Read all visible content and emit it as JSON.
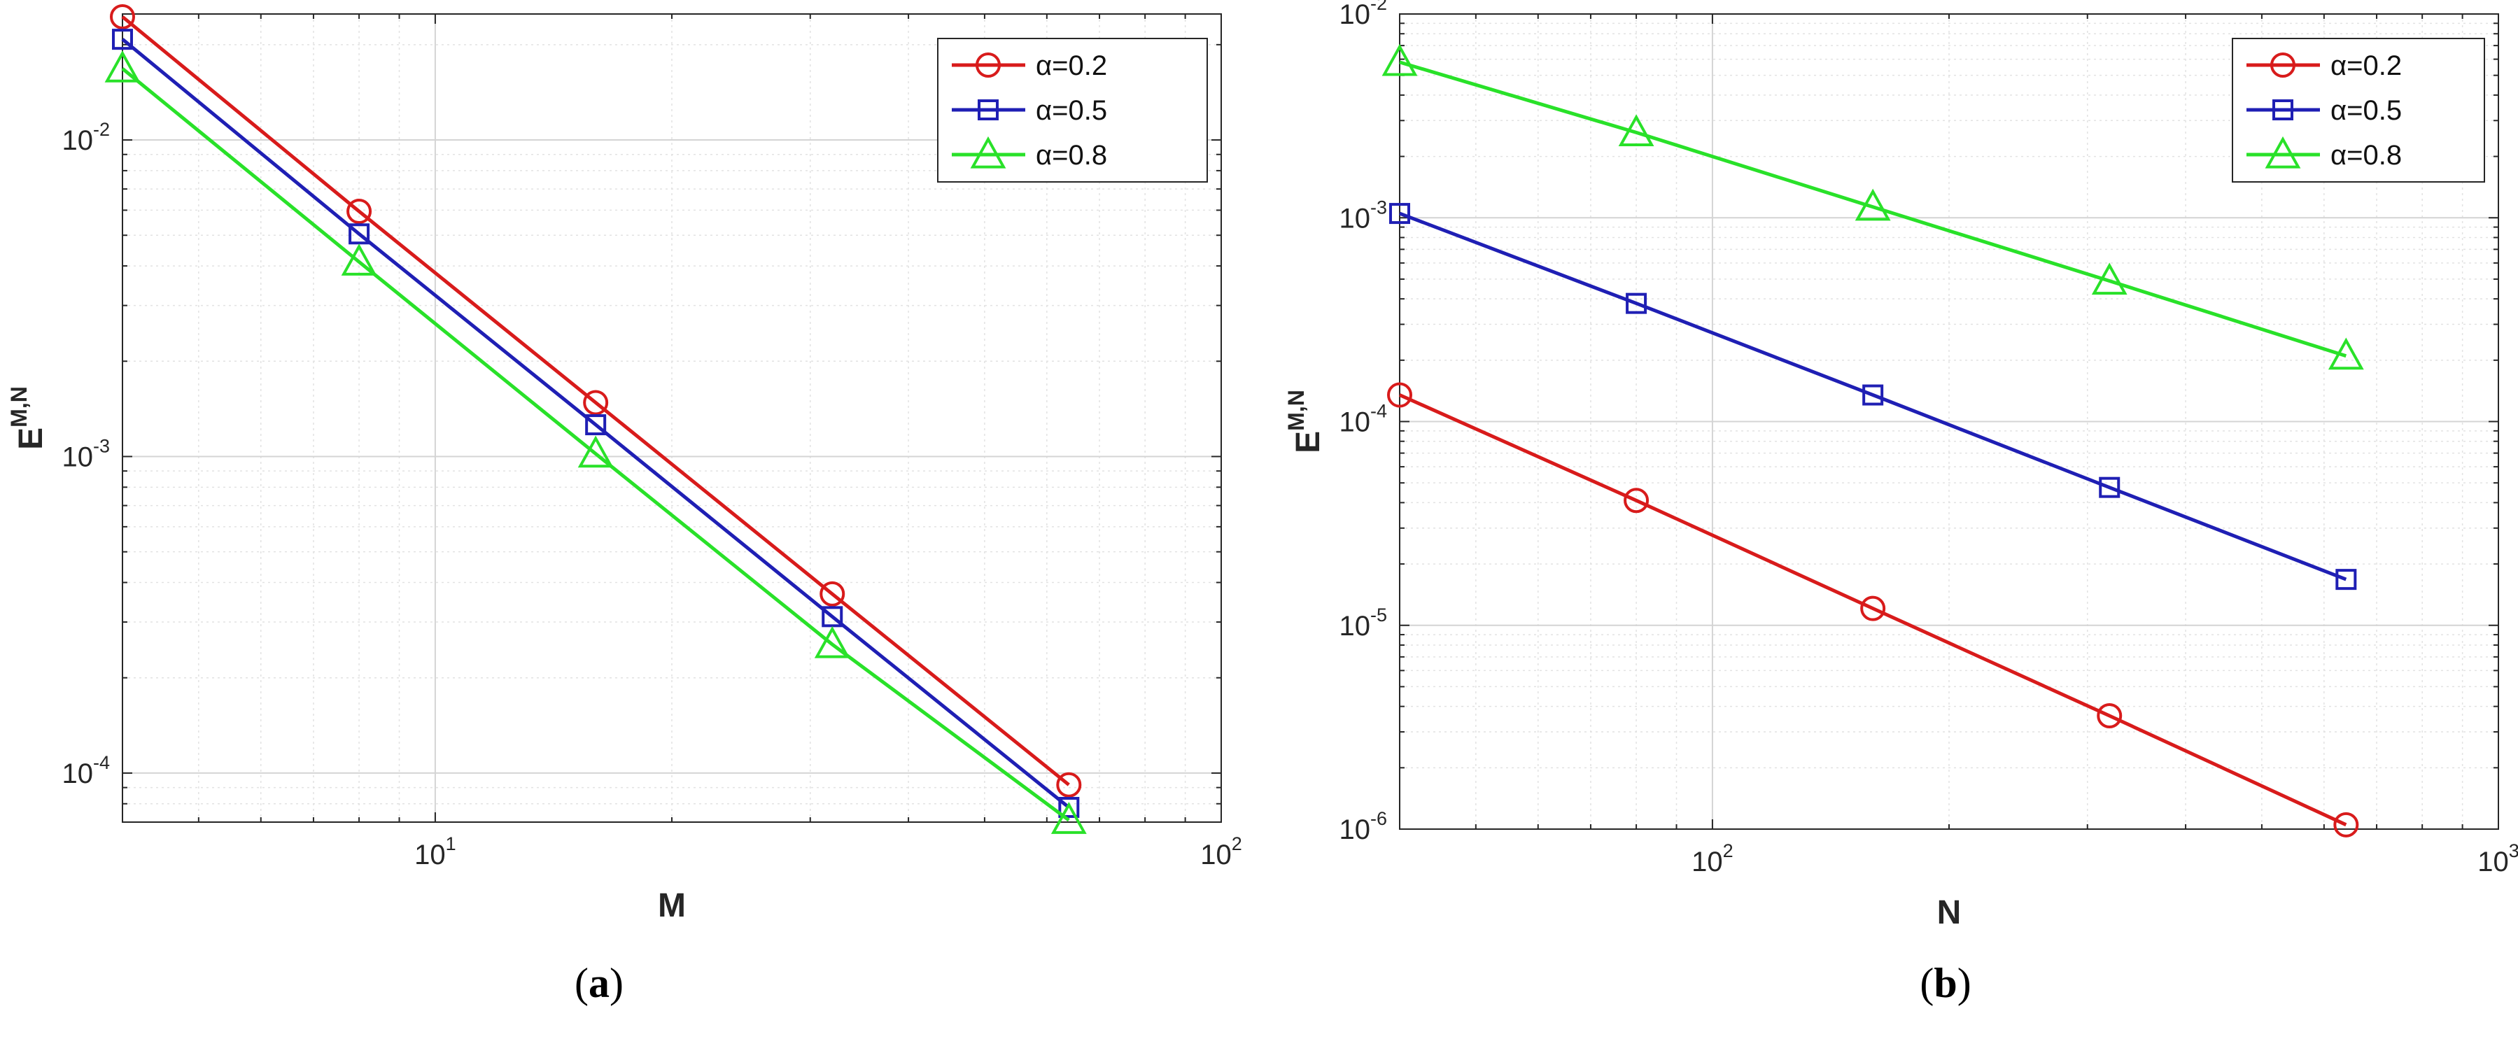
{
  "captions": [
    "a",
    "b"
  ],
  "chart_data": [
    {
      "type": "line",
      "title": "",
      "xlabel": "M",
      "ylabel": "E",
      "ylabel_superscript": "M,N",
      "xscale": "log",
      "yscale": "log",
      "xlim": [
        4,
        100
      ],
      "ylim": [
        7e-05,
        0.025
      ],
      "x_ticks": [
        {
          "base": "10",
          "exp": "1"
        },
        {
          "base": "10",
          "exp": "2"
        }
      ],
      "y_ticks": [
        {
          "base": "10",
          "exp": "-4"
        },
        {
          "base": "10",
          "exp": "-3"
        },
        {
          "base": "10",
          "exp": "-2"
        }
      ],
      "grid": true,
      "legend_position": "top-right",
      "x": [
        4,
        8,
        16,
        32,
        64
      ],
      "series": [
        {
          "name": "α=0.2",
          "marker": "circle",
          "color": "#d81b1b",
          "values": [
            0.0245,
            0.00595,
            0.00148,
            0.000368,
            9.18e-05
          ]
        },
        {
          "name": "α=0.5",
          "marker": "square",
          "color": "#1f1fb4",
          "values": [
            0.0208,
            0.00505,
            0.00126,
            0.000312,
            7.79e-05
          ]
        },
        {
          "name": "α=0.8",
          "marker": "triangle",
          "color": "#29e129",
          "values": [
            0.0168,
            0.00412,
            0.00102,
            0.000255,
            7.1e-05
          ]
        }
      ]
    },
    {
      "type": "line",
      "title": "",
      "xlabel": "N",
      "ylabel": "E",
      "ylabel_superscript": "M,N",
      "xscale": "log",
      "yscale": "log",
      "xlim": [
        40,
        1000
      ],
      "ylim": [
        1e-06,
        0.01
      ],
      "x_ticks": [
        {
          "base": "10",
          "exp": "2"
        },
        {
          "base": "10",
          "exp": "3"
        }
      ],
      "y_ticks": [
        {
          "base": "10",
          "exp": "-6"
        },
        {
          "base": "10",
          "exp": "-5"
        },
        {
          "base": "10",
          "exp": "-4"
        },
        {
          "base": "10",
          "exp": "-3"
        },
        {
          "base": "10",
          "exp": "-2"
        }
      ],
      "grid": true,
      "legend_position": "top-right",
      "x": [
        40,
        80,
        160,
        320,
        640
      ],
      "series": [
        {
          "name": "α=0.2",
          "marker": "circle",
          "color": "#d81b1b",
          "values": [
            0.000135,
            4.1e-05,
            1.21e-05,
            3.6e-06,
            1.05e-06
          ]
        },
        {
          "name": "α=0.5",
          "marker": "square",
          "color": "#1f1fb4",
          "values": [
            0.00105,
            0.00038,
            0.000135,
            4.75e-05,
            1.68e-05
          ]
        },
        {
          "name": "α=0.8",
          "marker": "triangle",
          "color": "#29e129",
          "values": [
            0.0058,
            0.00262,
            0.00113,
            0.00049,
            0.00021
          ]
        }
      ]
    }
  ]
}
